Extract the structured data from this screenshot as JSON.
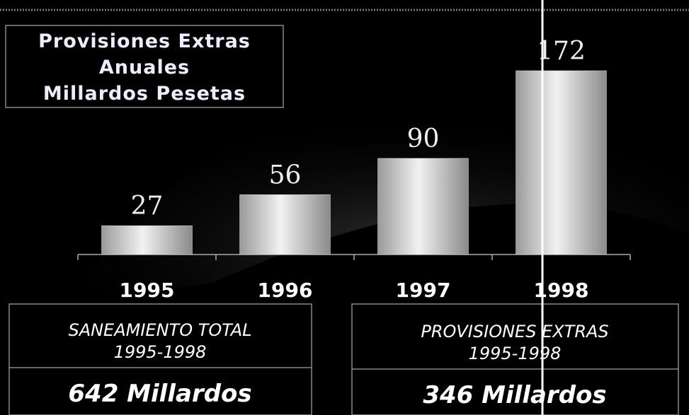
{
  "chart_data": {
    "type": "bar",
    "title": [
      "Provisiones Extras",
      "Anuales",
      "Millardos  Pesetas"
    ],
    "categories": [
      "1995",
      "1996",
      "1997",
      "1998"
    ],
    "values": [
      27,
      56,
      90,
      172
    ],
    "color": "#d8d8d8",
    "annotations": [
      {
        "lines": [
          "SANEAMIENTO TOTAL",
          "1995-1998"
        ],
        "total": "642 Millardos"
      },
      {
        "lines": [
          "PROVISIONES EXTRAS",
          "1995-1998"
        ],
        "total": "346 Millardos"
      }
    ]
  }
}
